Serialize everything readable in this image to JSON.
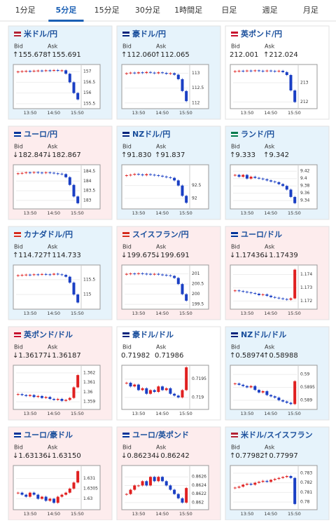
{
  "tabs": {
    "items": [
      "1分足",
      "5分足",
      "15分足",
      "30分足",
      "1時間足",
      "日足",
      "週足",
      "月足"
    ],
    "active": 1
  },
  "labels": {
    "bid": "Bid",
    "ask": "Ask",
    "times": [
      "13:50",
      "14:50",
      "15:50"
    ]
  },
  "cards": [
    {
      "name": "米ドル/円",
      "tone": "up",
      "bid": "↑155.678",
      "ask": "↑155.691",
      "ylim": [
        155.4,
        157.2
      ],
      "yticks": [
        155.5,
        156,
        156.5,
        157
      ],
      "closes": [
        157.0,
        157.02,
        157.03,
        157.01,
        157.04,
        157.05,
        157.03,
        157.06,
        157.05,
        157.07,
        157.04,
        157.06,
        156.9,
        156.5,
        156.0,
        155.7
      ]
    },
    {
      "name": "豪ドル/円",
      "tone": "up",
      "bid": "↑112.060",
      "ask": "↑112.065",
      "ylim": [
        111.9,
        113.2
      ],
      "yticks": [
        112,
        112.5,
        113
      ],
      "closes": [
        113.0,
        113.02,
        113.0,
        113.03,
        113.01,
        113.04,
        113.02,
        113.0,
        113.03,
        113.01,
        112.98,
        113.0,
        112.95,
        112.8,
        112.4,
        112.06
      ]
    },
    {
      "name": "英ポンド/円",
      "tone": "flat",
      "bid": "212.001",
      "ask": "↑212.024",
      "ylim": [
        211.8,
        213.8
      ],
      "yticks": [
        212,
        213
      ],
      "closes": [
        213.6,
        213.62,
        213.6,
        213.63,
        213.61,
        213.64,
        213.62,
        213.6,
        213.63,
        213.61,
        213.6,
        213.62,
        213.55,
        213.4,
        212.6,
        212.0
      ]
    },
    {
      "name": "ユーロ/円",
      "tone": "down",
      "bid": "↓182.847",
      "ask": "↓182.867",
      "ylim": [
        182.7,
        184.7
      ],
      "yticks": [
        183,
        183.5,
        184,
        184.5
      ],
      "closes": [
        184.4,
        184.42,
        184.45,
        184.43,
        184.46,
        184.44,
        184.42,
        184.45,
        184.43,
        184.4,
        184.38,
        184.36,
        184.2,
        183.8,
        183.2,
        182.85
      ]
    },
    {
      "name": "NZドル/円",
      "tone": "up",
      "bid": "↑91.830",
      "ask": "↑91.837",
      "ylim": [
        91.7,
        93.2
      ],
      "yticks": [
        92,
        92.5
      ],
      "closes": [
        92.9,
        92.92,
        92.95,
        92.93,
        92.9,
        92.94,
        92.92,
        92.9,
        92.88,
        92.85,
        92.82,
        92.8,
        92.7,
        92.5,
        92.1,
        91.83
      ]
    },
    {
      "name": "ランド/円",
      "tone": "up",
      "bid": "↑9.333",
      "ask": "↑9.342",
      "ylim": [
        9.325,
        9.43
      ],
      "yticks": [
        9.34,
        9.36,
        9.38,
        9.4,
        9.42
      ],
      "closes": [
        9.41,
        9.405,
        9.41,
        9.4,
        9.405,
        9.402,
        9.4,
        9.398,
        9.395,
        9.392,
        9.39,
        9.385,
        9.38,
        9.37,
        9.35,
        9.333
      ]
    },
    {
      "name": "カナダドル/円",
      "tone": "up",
      "bid": "↑114.727",
      "ask": "↑114.733",
      "ylim": [
        114.6,
        115.9
      ],
      "yticks": [
        115,
        115.5
      ],
      "closes": [
        115.65,
        115.66,
        115.67,
        115.66,
        115.68,
        115.67,
        115.69,
        115.68,
        115.67,
        115.7,
        115.68,
        115.66,
        115.6,
        115.4,
        115.0,
        114.73
      ]
    },
    {
      "name": "スイスフラン/円",
      "tone": "down",
      "bid": "↓199.675",
      "ask": "↓199.691",
      "ylim": [
        199.4,
        201.3
      ],
      "yticks": [
        199.5,
        200,
        200.5,
        201
      ],
      "closes": [
        201.0,
        201.02,
        201.0,
        201.03,
        201.01,
        201.0,
        200.98,
        201.0,
        200.97,
        200.95,
        200.93,
        200.9,
        200.8,
        200.5,
        200.0,
        199.68
      ]
    },
    {
      "name": "ユーロ/ドル",
      "tone": "down",
      "bid": "↓1.17436",
      "ask": "↓1.17439",
      "ylim": [
        1.1716,
        1.1745
      ],
      "yticks": [
        1.172,
        1.173,
        1.174
      ],
      "closes": [
        1.1728,
        1.17275,
        1.1727,
        1.17265,
        1.1726,
        1.17255,
        1.17245,
        1.1725,
        1.1724,
        1.1723,
        1.17225,
        1.1722,
        1.17215,
        1.1721,
        1.1722,
        1.17436
      ]
    },
    {
      "name": "英ポンド/ドル",
      "tone": "down",
      "bid": "↓1.36177",
      "ask": "↓1.36187",
      "ylim": [
        1.3585,
        1.3625
      ],
      "yticks": [
        1.359,
        1.36,
        1.361,
        1.362
      ],
      "closes": [
        1.3598,
        1.3597,
        1.3596,
        1.3597,
        1.3595,
        1.3596,
        1.3594,
        1.3595,
        1.3593,
        1.3592,
        1.3593,
        1.3591,
        1.3592,
        1.3594,
        1.3605,
        1.36177
      ]
    },
    {
      "name": "豪ドル/ドル",
      "tone": "flat",
      "bid": "0.71982",
      "ask": "0.71986",
      "ylim": [
        0.71875,
        0.7198
      ],
      "yticks": [
        0.719,
        0.7195
      ],
      "closes": [
        0.7194,
        0.7193,
        0.71935,
        0.7192,
        0.71925,
        0.7191,
        0.7192,
        0.71915,
        0.7193,
        0.7192,
        0.71925,
        0.7191,
        0.71905,
        0.719,
        0.7192,
        0.71982
      ]
    },
    {
      "name": "NZドル/ドル",
      "tone": "up",
      "bid": "↑0.58974",
      "ask": "↑0.58988",
      "ylim": [
        0.58875,
        0.59025
      ],
      "yticks": [
        0.589,
        0.5895,
        0.59
      ],
      "closes": [
        0.58965,
        0.5896,
        0.58955,
        0.5895,
        0.58955,
        0.5894,
        0.5893,
        0.58935,
        0.5892,
        0.58915,
        0.5891,
        0.589,
        0.58895,
        0.5889,
        0.58885,
        0.58974
      ]
    },
    {
      "name": "ユーロ/豪ドル",
      "tone": "down",
      "bid": "↓1.63136",
      "ask": "↓1.63150",
      "ylim": [
        1.6296,
        1.6315
      ],
      "yticks": [
        1.63,
        1.6305,
        1.631
      ],
      "closes": [
        1.6303,
        1.6302,
        1.6301,
        1.6303,
        1.6302,
        1.63,
        1.6301,
        1.6299,
        1.63,
        1.6298,
        1.6301,
        1.6302,
        1.6303,
        1.6305,
        1.6308,
        1.63136
      ]
    },
    {
      "name": "ユーロ/英ポンド",
      "tone": "down",
      "bid": "↓0.86234",
      "ask": "↓0.86242",
      "ylim": [
        0.8619,
        0.8628
      ],
      "yticks": [
        0.862,
        0.8622,
        0.8624,
        0.8626
      ],
      "closes": [
        0.8622,
        0.8623,
        0.8624,
        0.8624,
        0.8625,
        0.8624,
        0.8626,
        0.8625,
        0.8626,
        0.8625,
        0.8624,
        0.8623,
        0.8622,
        0.8621,
        0.862,
        0.86234
      ]
    },
    {
      "name": "米ドル/スイスフラン",
      "tone": "up",
      "bid": "↑0.77982",
      "ask": "↑0.77997",
      "ylim": [
        0.7795,
        0.7835
      ],
      "yticks": [
        0.78,
        0.781,
        0.782,
        0.783
      ],
      "closes": [
        0.7815,
        0.7816,
        0.7818,
        0.7819,
        0.7818,
        0.782,
        0.7821,
        0.7822,
        0.7821,
        0.7823,
        0.7824,
        0.7825,
        0.7826,
        0.7827,
        0.7825,
        0.7798
      ]
    }
  ]
}
